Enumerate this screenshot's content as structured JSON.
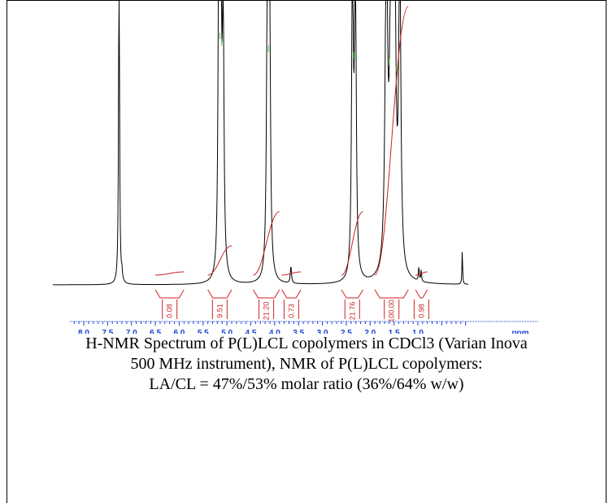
{
  "chart_data": {
    "type": "line",
    "xlabel": "ppm",
    "x_ticks": [
      "8.0",
      "7.5",
      "7.0",
      "6.5",
      "6.0",
      "5.5",
      "5.0",
      "4.5",
      "4.0",
      "3.5",
      "3.0",
      "2.5",
      "2.0",
      "1.5",
      "1.0"
    ],
    "xlim": [
      8.6,
      0.0
    ],
    "reversed_axis": true,
    "peaks": [
      {
        "ppm": 7.26,
        "height": 1.2,
        "width": 0.012
      },
      {
        "ppm": 7.2,
        "height": 0.03,
        "width": 0.01
      },
      {
        "ppm": 5.17,
        "height": 1.2,
        "width": 0.018
      },
      {
        "ppm": 5.13,
        "height": 1.2,
        "width": 0.018
      },
      {
        "ppm": 5.08,
        "height": 0.95,
        "width": 0.02
      },
      {
        "ppm": 4.15,
        "height": 1.2,
        "width": 0.02
      },
      {
        "ppm": 4.11,
        "height": 1.2,
        "width": 0.02
      },
      {
        "ppm": 3.66,
        "height": 0.06,
        "width": 0.015
      },
      {
        "ppm": 2.37,
        "height": 1.2,
        "width": 0.02
      },
      {
        "ppm": 2.31,
        "height": 1.2,
        "width": 0.02
      },
      {
        "ppm": 1.66,
        "height": 1.2,
        "width": 0.03
      },
      {
        "ppm": 1.56,
        "height": 1.2,
        "width": 0.03
      },
      {
        "ppm": 1.49,
        "height": 1.2,
        "width": 0.03
      },
      {
        "ppm": 1.38,
        "height": 1.2,
        "width": 0.025
      },
      {
        "ppm": 0.98,
        "height": 0.05,
        "width": 0.01
      },
      {
        "ppm": 0.93,
        "height": 0.04,
        "width": 0.01
      },
      {
        "ppm": 0.07,
        "height": 0.12,
        "width": 0.008
      }
    ],
    "integrals": [
      {
        "label": "0.08",
        "from": 6.5,
        "to": 5.9
      },
      {
        "label": "9.51",
        "from": 5.4,
        "to": 4.9
      },
      {
        "label": "21.20",
        "from": 4.45,
        "to": 3.9
      },
      {
        "label": "0.73",
        "from": 3.85,
        "to": 3.45
      },
      {
        "label": "21.76",
        "from": 2.6,
        "to": 2.15
      },
      {
        "label": "100.00",
        "from": 1.9,
        "to": 1.2
      },
      {
        "label": "0.98",
        "from": 1.05,
        "to": 0.8
      }
    ],
    "colors": {
      "spectrum": "#000000",
      "integral": "#cc2222",
      "peak_marker": "#33cc33",
      "axis": "#1a3fd6"
    }
  },
  "caption": {
    "line1": "H-NMR Spectrum of P(L)LCL copolymers in CDCl3 (Varian Inova",
    "line2": "500 MHz instrument), NMR of P(L)LCL copolymers:",
    "line3": "LA/CL = 47%/53% molar ratio (36%/64% w/w)"
  }
}
